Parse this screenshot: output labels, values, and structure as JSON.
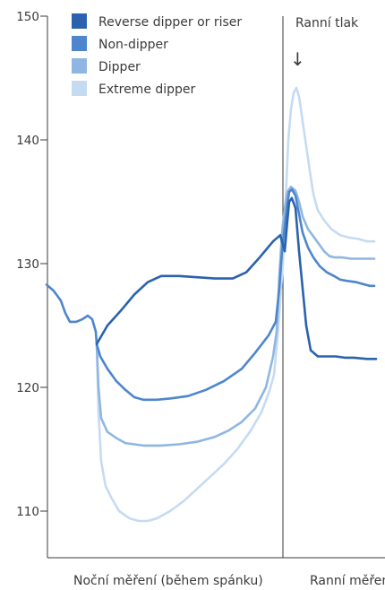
{
  "chart_data": {
    "type": "line",
    "ylim": [
      105,
      150
    ],
    "yticks": [
      110,
      120,
      130,
      140,
      150
    ],
    "x_categories": [
      "Noční měření (během spánku)",
      "Ranní měření"
    ],
    "annotation": {
      "text": "Ranní tlak",
      "arrow": "↓"
    },
    "series": [
      {
        "name": "Reverse dipper or riser",
        "color": "#2a62ae",
        "points": [
          [
            108,
            123.5
          ],
          [
            120,
            125
          ],
          [
            135,
            126.2
          ],
          [
            150,
            127.5
          ],
          [
            165,
            128.5
          ],
          [
            180,
            129
          ],
          [
            200,
            129
          ],
          [
            220,
            128.9
          ],
          [
            240,
            128.8
          ],
          [
            260,
            128.8
          ],
          [
            275,
            129.3
          ],
          [
            290,
            130.5
          ],
          [
            305,
            131.8
          ],
          [
            313,
            132.3
          ],
          [
            318,
            131
          ],
          [
            321,
            133.5
          ],
          [
            323,
            135
          ],
          [
            326,
            135.3
          ],
          [
            330,
            134.5
          ],
          [
            334,
            131
          ],
          [
            338,
            128
          ],
          [
            342,
            125
          ],
          [
            347,
            123
          ],
          [
            355,
            122.5
          ],
          [
            365,
            122.5
          ],
          [
            375,
            122.5
          ],
          [
            385,
            122.4
          ],
          [
            395,
            122.4
          ],
          [
            410,
            122.3
          ],
          [
            420,
            122.3
          ]
        ]
      },
      {
        "name": "Non-dipper",
        "color": "#4d86cc",
        "points": [
          [
            52,
            128.3
          ],
          [
            60,
            127.8
          ],
          [
            68,
            127
          ],
          [
            73,
            126
          ],
          [
            78,
            125.3
          ],
          [
            85,
            125.3
          ],
          [
            92,
            125.5
          ],
          [
            98,
            125.8
          ],
          [
            103,
            125.5
          ],
          [
            107,
            124.5
          ],
          [
            108,
            123.5
          ],
          [
            112,
            122.5
          ],
          [
            120,
            121.5
          ],
          [
            130,
            120.5
          ],
          [
            140,
            119.8
          ],
          [
            150,
            119.2
          ],
          [
            160,
            119
          ],
          [
            175,
            119
          ],
          [
            190,
            119.1
          ],
          [
            210,
            119.3
          ],
          [
            230,
            119.8
          ],
          [
            250,
            120.5
          ],
          [
            270,
            121.5
          ],
          [
            285,
            122.8
          ],
          [
            300,
            124.2
          ],
          [
            308,
            125.3
          ],
          [
            312,
            128
          ],
          [
            315,
            131
          ],
          [
            318,
            133
          ],
          [
            321,
            134.8
          ],
          [
            323,
            135.8
          ],
          [
            326,
            136
          ],
          [
            330,
            135.5
          ],
          [
            334,
            134
          ],
          [
            338,
            132.5
          ],
          [
            344,
            131.3
          ],
          [
            350,
            130.5
          ],
          [
            357,
            129.8
          ],
          [
            365,
            129.3
          ],
          [
            373,
            129
          ],
          [
            380,
            128.7
          ],
          [
            388,
            128.6
          ],
          [
            398,
            128.5
          ],
          [
            408,
            128.3
          ],
          [
            413,
            128.2
          ],
          [
            418,
            128.2
          ]
        ]
      },
      {
        "name": "Dipper",
        "color": "#8fb6e2",
        "points": [
          [
            108,
            123.5
          ],
          [
            110,
            120
          ],
          [
            113,
            117.5
          ],
          [
            120,
            116.4
          ],
          [
            130,
            115.9
          ],
          [
            140,
            115.5
          ],
          [
            160,
            115.3
          ],
          [
            180,
            115.3
          ],
          [
            200,
            115.4
          ],
          [
            220,
            115.6
          ],
          [
            240,
            116
          ],
          [
            255,
            116.5
          ],
          [
            270,
            117.2
          ],
          [
            285,
            118.3
          ],
          [
            297,
            120
          ],
          [
            305,
            122.5
          ],
          [
            309,
            124.5
          ],
          [
            312,
            129
          ],
          [
            315,
            132.5
          ],
          [
            318,
            134.5
          ],
          [
            321,
            135.8
          ],
          [
            325,
            136.2
          ],
          [
            330,
            135.9
          ],
          [
            334,
            135
          ],
          [
            338,
            133.8
          ],
          [
            344,
            132.8
          ],
          [
            350,
            132.2
          ],
          [
            356,
            131.6
          ],
          [
            362,
            131
          ],
          [
            368,
            130.6
          ],
          [
            374,
            130.5
          ],
          [
            382,
            130.5
          ],
          [
            392,
            130.4
          ],
          [
            400,
            130.4
          ],
          [
            410,
            130.4
          ],
          [
            418,
            130.4
          ]
        ]
      },
      {
        "name": "Extreme dipper",
        "color": "#c5dbf2",
        "points": [
          [
            108,
            123.5
          ],
          [
            110,
            118
          ],
          [
            113,
            114
          ],
          [
            118,
            112
          ],
          [
            125,
            111
          ],
          [
            133,
            110
          ],
          [
            145,
            109.4
          ],
          [
            155,
            109.2
          ],
          [
            165,
            109.2
          ],
          [
            175,
            109.4
          ],
          [
            190,
            110
          ],
          [
            205,
            110.8
          ],
          [
            220,
            111.8
          ],
          [
            235,
            112.8
          ],
          [
            250,
            113.8
          ],
          [
            265,
            115
          ],
          [
            280,
            116.5
          ],
          [
            292,
            118
          ],
          [
            300,
            119.5
          ],
          [
            306,
            121
          ],
          [
            310,
            124
          ],
          [
            313,
            127
          ],
          [
            316,
            130
          ],
          [
            319,
            135
          ],
          [
            322,
            140
          ],
          [
            325,
            142.5
          ],
          [
            328,
            143.8
          ],
          [
            331,
            144.2
          ],
          [
            334,
            143.5
          ],
          [
            338,
            141.5
          ],
          [
            342,
            139.5
          ],
          [
            346,
            137.5
          ],
          [
            350,
            135.6
          ],
          [
            355,
            134.3
          ],
          [
            362,
            133.5
          ],
          [
            370,
            132.8
          ],
          [
            380,
            132.3
          ],
          [
            390,
            132.1
          ],
          [
            400,
            132
          ],
          [
            410,
            131.8
          ],
          [
            418,
            131.8
          ]
        ]
      }
    ]
  }
}
